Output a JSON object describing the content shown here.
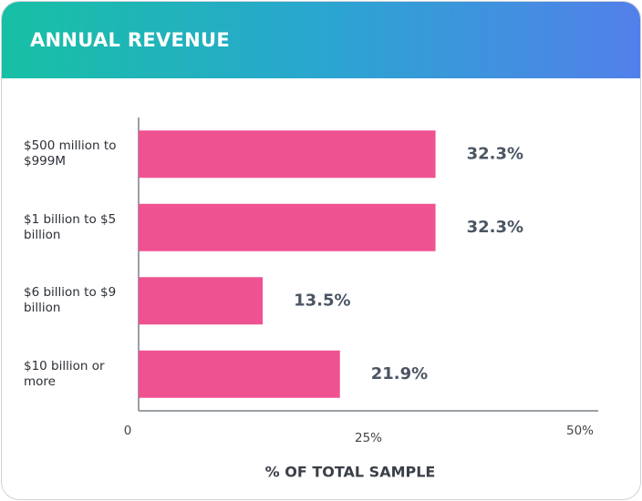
{
  "chart_data": {
    "type": "bar",
    "orientation": "horizontal",
    "title": "ANNUAL REVENUE",
    "categories": [
      "$500 million to $999M",
      "$1 billion to $5 billion",
      "$6 billion to $9 billion",
      "$10 billion or more"
    ],
    "values": [
      32.3,
      32.3,
      13.5,
      21.9
    ],
    "value_labels": [
      "32.3%",
      "32.3%",
      "13.5%",
      "21.9%"
    ],
    "color": "#ef5291",
    "xlabel": "% OF TOTAL SAMPLE",
    "xlim": [
      0,
      50
    ],
    "xticks": [
      0,
      {
        "value": 25,
        "label": "25%"
      },
      {
        "value": 50,
        "label": "50%"
      }
    ],
    "grid": false
  }
}
